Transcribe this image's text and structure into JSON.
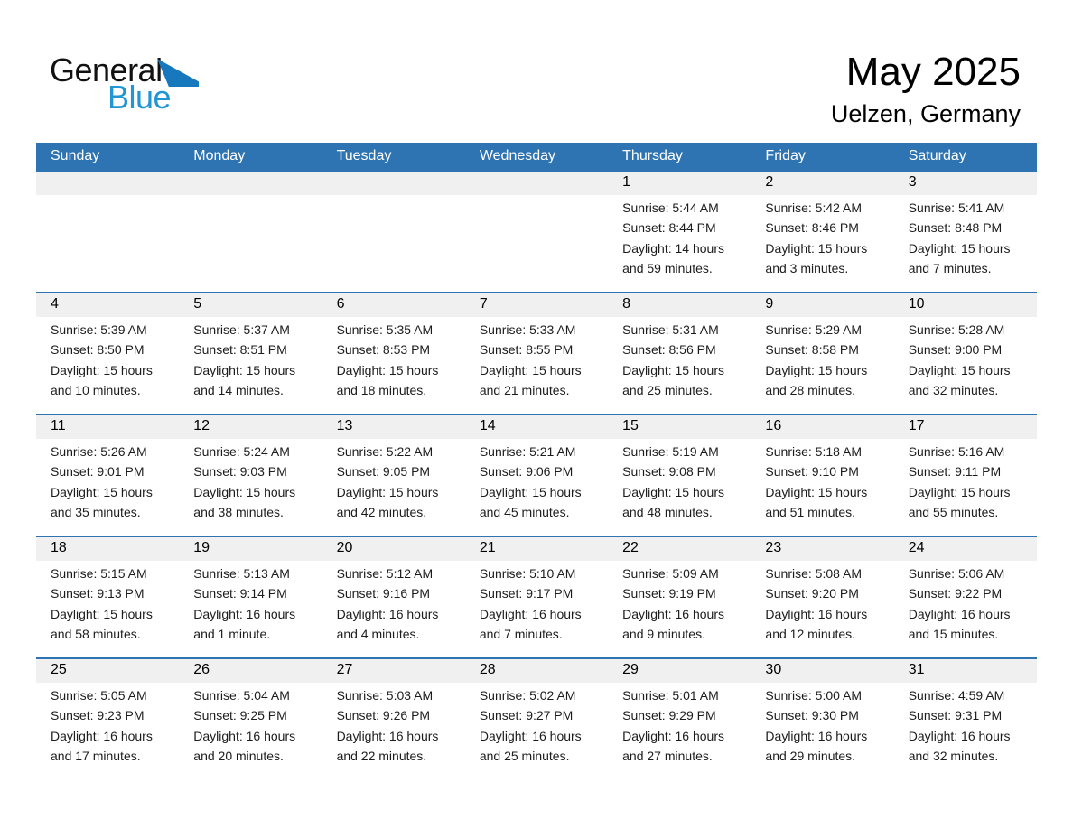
{
  "logo": {
    "general": "General",
    "blue": "Blue"
  },
  "header": {
    "title": "May 2025",
    "subtitle": "Uelzen, Germany"
  },
  "colors": {
    "header_blue": "#2e73b2",
    "stripe_gray": "#f0f0f0",
    "logo_blue": "#2196d3",
    "logo_triangle_blue": "#1878be"
  },
  "weekdays": [
    "Sunday",
    "Monday",
    "Tuesday",
    "Wednesday",
    "Thursday",
    "Friday",
    "Saturday"
  ],
  "weeks": [
    [
      null,
      null,
      null,
      null,
      {
        "day": "1",
        "sunrise": "Sunrise: 5:44 AM",
        "sunset": "Sunset: 8:44 PM",
        "daylight_line1": "Daylight: 14 hours",
        "daylight_line2": "and 59 minutes."
      },
      {
        "day": "2",
        "sunrise": "Sunrise: 5:42 AM",
        "sunset": "Sunset: 8:46 PM",
        "daylight_line1": "Daylight: 15 hours",
        "daylight_line2": "and 3 minutes."
      },
      {
        "day": "3",
        "sunrise": "Sunrise: 5:41 AM",
        "sunset": "Sunset: 8:48 PM",
        "daylight_line1": "Daylight: 15 hours",
        "daylight_line2": "and 7 minutes."
      }
    ],
    [
      {
        "day": "4",
        "sunrise": "Sunrise: 5:39 AM",
        "sunset": "Sunset: 8:50 PM",
        "daylight_line1": "Daylight: 15 hours",
        "daylight_line2": "and 10 minutes."
      },
      {
        "day": "5",
        "sunrise": "Sunrise: 5:37 AM",
        "sunset": "Sunset: 8:51 PM",
        "daylight_line1": "Daylight: 15 hours",
        "daylight_line2": "and 14 minutes."
      },
      {
        "day": "6",
        "sunrise": "Sunrise: 5:35 AM",
        "sunset": "Sunset: 8:53 PM",
        "daylight_line1": "Daylight: 15 hours",
        "daylight_line2": "and 18 minutes."
      },
      {
        "day": "7",
        "sunrise": "Sunrise: 5:33 AM",
        "sunset": "Sunset: 8:55 PM",
        "daylight_line1": "Daylight: 15 hours",
        "daylight_line2": "and 21 minutes."
      },
      {
        "day": "8",
        "sunrise": "Sunrise: 5:31 AM",
        "sunset": "Sunset: 8:56 PM",
        "daylight_line1": "Daylight: 15 hours",
        "daylight_line2": "and 25 minutes."
      },
      {
        "day": "9",
        "sunrise": "Sunrise: 5:29 AM",
        "sunset": "Sunset: 8:58 PM",
        "daylight_line1": "Daylight: 15 hours",
        "daylight_line2": "and 28 minutes."
      },
      {
        "day": "10",
        "sunrise": "Sunrise: 5:28 AM",
        "sunset": "Sunset: 9:00 PM",
        "daylight_line1": "Daylight: 15 hours",
        "daylight_line2": "and 32 minutes."
      }
    ],
    [
      {
        "day": "11",
        "sunrise": "Sunrise: 5:26 AM",
        "sunset": "Sunset: 9:01 PM",
        "daylight_line1": "Daylight: 15 hours",
        "daylight_line2": "and 35 minutes."
      },
      {
        "day": "12",
        "sunrise": "Sunrise: 5:24 AM",
        "sunset": "Sunset: 9:03 PM",
        "daylight_line1": "Daylight: 15 hours",
        "daylight_line2": "and 38 minutes."
      },
      {
        "day": "13",
        "sunrise": "Sunrise: 5:22 AM",
        "sunset": "Sunset: 9:05 PM",
        "daylight_line1": "Daylight: 15 hours",
        "daylight_line2": "and 42 minutes."
      },
      {
        "day": "14",
        "sunrise": "Sunrise: 5:21 AM",
        "sunset": "Sunset: 9:06 PM",
        "daylight_line1": "Daylight: 15 hours",
        "daylight_line2": "and 45 minutes."
      },
      {
        "day": "15",
        "sunrise": "Sunrise: 5:19 AM",
        "sunset": "Sunset: 9:08 PM",
        "daylight_line1": "Daylight: 15 hours",
        "daylight_line2": "and 48 minutes."
      },
      {
        "day": "16",
        "sunrise": "Sunrise: 5:18 AM",
        "sunset": "Sunset: 9:10 PM",
        "daylight_line1": "Daylight: 15 hours",
        "daylight_line2": "and 51 minutes."
      },
      {
        "day": "17",
        "sunrise": "Sunrise: 5:16 AM",
        "sunset": "Sunset: 9:11 PM",
        "daylight_line1": "Daylight: 15 hours",
        "daylight_line2": "and 55 minutes."
      }
    ],
    [
      {
        "day": "18",
        "sunrise": "Sunrise: 5:15 AM",
        "sunset": "Sunset: 9:13 PM",
        "daylight_line1": "Daylight: 15 hours",
        "daylight_line2": "and 58 minutes."
      },
      {
        "day": "19",
        "sunrise": "Sunrise: 5:13 AM",
        "sunset": "Sunset: 9:14 PM",
        "daylight_line1": "Daylight: 16 hours",
        "daylight_line2": "and 1 minute."
      },
      {
        "day": "20",
        "sunrise": "Sunrise: 5:12 AM",
        "sunset": "Sunset: 9:16 PM",
        "daylight_line1": "Daylight: 16 hours",
        "daylight_line2": "and 4 minutes."
      },
      {
        "day": "21",
        "sunrise": "Sunrise: 5:10 AM",
        "sunset": "Sunset: 9:17 PM",
        "daylight_line1": "Daylight: 16 hours",
        "daylight_line2": "and 7 minutes."
      },
      {
        "day": "22",
        "sunrise": "Sunrise: 5:09 AM",
        "sunset": "Sunset: 9:19 PM",
        "daylight_line1": "Daylight: 16 hours",
        "daylight_line2": "and 9 minutes."
      },
      {
        "day": "23",
        "sunrise": "Sunrise: 5:08 AM",
        "sunset": "Sunset: 9:20 PM",
        "daylight_line1": "Daylight: 16 hours",
        "daylight_line2": "and 12 minutes."
      },
      {
        "day": "24",
        "sunrise": "Sunrise: 5:06 AM",
        "sunset": "Sunset: 9:22 PM",
        "daylight_line1": "Daylight: 16 hours",
        "daylight_line2": "and 15 minutes."
      }
    ],
    [
      {
        "day": "25",
        "sunrise": "Sunrise: 5:05 AM",
        "sunset": "Sunset: 9:23 PM",
        "daylight_line1": "Daylight: 16 hours",
        "daylight_line2": "and 17 minutes."
      },
      {
        "day": "26",
        "sunrise": "Sunrise: 5:04 AM",
        "sunset": "Sunset: 9:25 PM",
        "daylight_line1": "Daylight: 16 hours",
        "daylight_line2": "and 20 minutes."
      },
      {
        "day": "27",
        "sunrise": "Sunrise: 5:03 AM",
        "sunset": "Sunset: 9:26 PM",
        "daylight_line1": "Daylight: 16 hours",
        "daylight_line2": "and 22 minutes."
      },
      {
        "day": "28",
        "sunrise": "Sunrise: 5:02 AM",
        "sunset": "Sunset: 9:27 PM",
        "daylight_line1": "Daylight: 16 hours",
        "daylight_line2": "and 25 minutes."
      },
      {
        "day": "29",
        "sunrise": "Sunrise: 5:01 AM",
        "sunset": "Sunset: 9:29 PM",
        "daylight_line1": "Daylight: 16 hours",
        "daylight_line2": "and 27 minutes."
      },
      {
        "day": "30",
        "sunrise": "Sunrise: 5:00 AM",
        "sunset": "Sunset: 9:30 PM",
        "daylight_line1": "Daylight: 16 hours",
        "daylight_line2": "and 29 minutes."
      },
      {
        "day": "31",
        "sunrise": "Sunrise: 4:59 AM",
        "sunset": "Sunset: 9:31 PM",
        "daylight_line1": "Daylight: 16 hours",
        "daylight_line2": "and 32 minutes."
      }
    ]
  ]
}
